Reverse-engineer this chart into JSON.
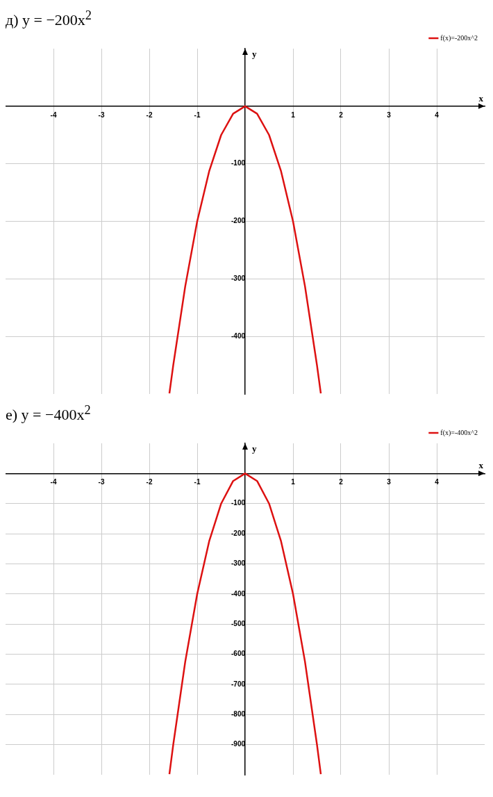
{
  "chart_data": [
    {
      "type": "line",
      "title": "д) y = −200x$^{2}$",
      "xlabel": "x",
      "ylabel": "y",
      "xlim": [
        -5,
        5
      ],
      "ylim": [
        -500,
        100
      ],
      "xticks": [
        -4,
        -3,
        -2,
        -1,
        1,
        2,
        3,
        4
      ],
      "yticks": [
        -400,
        -300,
        -200,
        -100
      ],
      "grid": true,
      "legend": "top right",
      "marker": "none",
      "line_style": "solid",
      "series": [
        {
          "name": "f(x)=-200x^2",
          "color": "#dd1111",
          "x": [
            -1.58,
            -1.5,
            -1.25,
            -1,
            -0.75,
            -0.5,
            -0.25,
            0,
            0.25,
            0.5,
            0.75,
            1,
            1.25,
            1.5,
            1.58
          ],
          "values": [
            -499,
            -450,
            -313,
            -200,
            -113,
            -50,
            -13,
            0,
            -13,
            -50,
            -113,
            -200,
            -313,
            -450,
            -499
          ]
        }
      ]
    },
    {
      "type": "line",
      "title": "е) y = −400x$^{2}$",
      "xlabel": "x",
      "ylabel": "y",
      "xlim": [
        -5,
        5
      ],
      "ylim": [
        -1000,
        100
      ],
      "xticks": [
        -4,
        -3,
        -2,
        -1,
        1,
        2,
        3,
        4
      ],
      "yticks": [
        -900,
        -800,
        -700,
        -600,
        -500,
        -400,
        -300,
        -200,
        -100
      ],
      "grid": true,
      "legend": "top right",
      "marker": "none",
      "line_style": "solid",
      "series": [
        {
          "name": "f(x)=-400x^2",
          "color": "#dd1111",
          "x": [
            -1.58,
            -1.5,
            -1.25,
            -1,
            -0.75,
            -0.5,
            -0.25,
            0,
            0.25,
            0.5,
            0.75,
            1,
            1.25,
            1.5,
            1.58
          ],
          "values": [
            -998,
            -900,
            -625,
            -400,
            -225,
            -100,
            -25,
            0,
            -25,
            -100,
            -225,
            -400,
            -625,
            -900,
            -998
          ]
        }
      ]
    }
  ]
}
